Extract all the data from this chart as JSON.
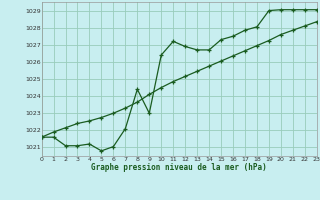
{
  "title": "Graphe pression niveau de la mer (hPa)",
  "bg_color": "#c8eef0",
  "grid_color": "#99ccbb",
  "line_color": "#1a5c20",
  "x_min": 0,
  "x_max": 23,
  "y_min": 1020.5,
  "y_max": 1029.5,
  "yticks": [
    1021,
    1022,
    1023,
    1024,
    1025,
    1026,
    1027,
    1028,
    1029
  ],
  "xticks": [
    0,
    1,
    2,
    3,
    4,
    5,
    6,
    7,
    8,
    9,
    10,
    11,
    12,
    13,
    14,
    15,
    16,
    17,
    18,
    19,
    20,
    21,
    22,
    23
  ],
  "line1_x": [
    0,
    1,
    2,
    3,
    4,
    5,
    6,
    7,
    8,
    9,
    10,
    11,
    12,
    13,
    14,
    15,
    16,
    17,
    18,
    19,
    20,
    21,
    22,
    23
  ],
  "line1_y": [
    1021.6,
    1021.6,
    1021.1,
    1021.1,
    1021.2,
    1020.8,
    1021.05,
    1022.1,
    1024.4,
    1023.0,
    1026.4,
    1027.2,
    1026.9,
    1026.7,
    1026.7,
    1027.3,
    1027.5,
    1027.85,
    1028.05,
    1029.0,
    1029.05,
    1029.05,
    1029.05,
    1029.05
  ],
  "line2_x": [
    0,
    1,
    2,
    3,
    4,
    5,
    6,
    7,
    8,
    9,
    10,
    11,
    12,
    13,
    14,
    15,
    16,
    17,
    18,
    19,
    20,
    21,
    22,
    23
  ],
  "line2_y": [
    1021.6,
    1021.9,
    1022.15,
    1022.4,
    1022.55,
    1022.75,
    1023.0,
    1023.3,
    1023.65,
    1024.1,
    1024.5,
    1024.85,
    1025.15,
    1025.45,
    1025.75,
    1026.05,
    1026.35,
    1026.65,
    1026.95,
    1027.25,
    1027.6,
    1027.85,
    1028.1,
    1028.35
  ]
}
